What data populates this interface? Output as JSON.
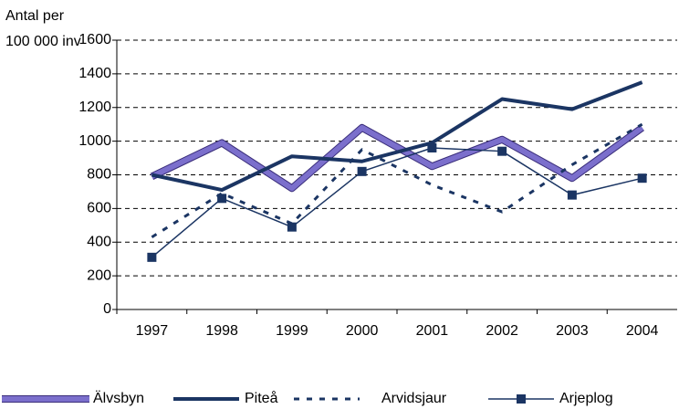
{
  "chart_data": {
    "type": "line",
    "ylabel": [
      "Antal per",
      "100 000 inv"
    ],
    "categories": [
      "1997",
      "1998",
      "1999",
      "2000",
      "2001",
      "2002",
      "2003",
      "2004"
    ],
    "series": [
      {
        "name": "Älvsbyn",
        "color": "#7b6fcc",
        "values": [
          790,
          990,
          720,
          1080,
          850,
          1010,
          780,
          1080
        ]
      },
      {
        "name": "Piteå",
        "color": "#1b3563",
        "values": [
          800,
          710,
          910,
          880,
          990,
          1250,
          1190,
          1350
        ]
      },
      {
        "name": "Arvidsjaur",
        "color": "#1b3563",
        "values": [
          430,
          690,
          510,
          950,
          740,
          580,
          860,
          1100
        ]
      },
      {
        "name": "Arjeplog",
        "color": "#1b3563",
        "values": [
          310,
          660,
          490,
          820,
          960,
          940,
          680,
          780
        ]
      }
    ],
    "ylim": [
      0,
      1600
    ],
    "yticks": [
      0,
      200,
      400,
      600,
      800,
      1000,
      1200,
      1400,
      1600
    ],
    "grid": true
  }
}
